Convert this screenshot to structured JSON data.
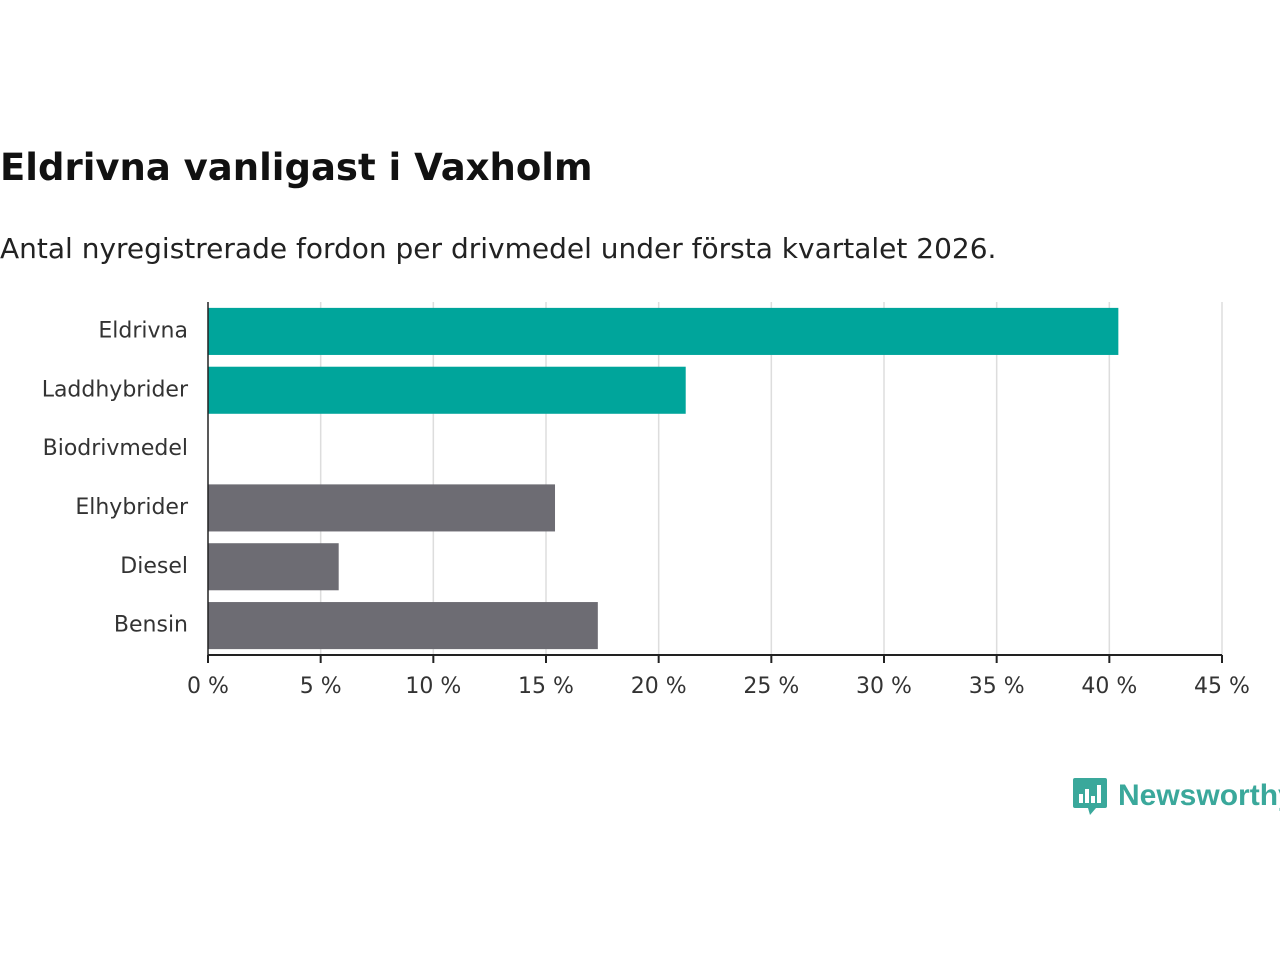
{
  "colors": {
    "highlight": "#00a59b",
    "default": "#6d6c73",
    "grid": "#dddddd",
    "axis": "#222222",
    "brand": "#3aa89b"
  },
  "brand": {
    "name": "Newsworthy",
    "icon": "newsworthy-logo-icon"
  },
  "chart_data": {
    "type": "bar",
    "orientation": "horizontal",
    "title": "Eldrivna vanligast i Vaxholm",
    "subtitle": "Antal nyregistrerade fordon per drivmedel under första kvartalet 2026.",
    "xlabel": "",
    "ylabel": "",
    "xlim": [
      0,
      45
    ],
    "ticks": [
      0,
      5,
      10,
      15,
      20,
      25,
      30,
      35,
      40,
      45
    ],
    "tick_labels": [
      "0 %",
      "5 %",
      "10 %",
      "15 %",
      "20 %",
      "25 %",
      "30 %",
      "35 %",
      "40 %",
      "45 %"
    ],
    "grid": true,
    "categories": [
      "Eldrivna",
      "Laddhybrider",
      "Biodrivmedel",
      "Elhybrider",
      "Diesel",
      "Bensin"
    ],
    "values": [
      40.4,
      21.2,
      0,
      15.4,
      5.8,
      17.3
    ],
    "highlighted": [
      true,
      true,
      false,
      false,
      false,
      false
    ]
  }
}
